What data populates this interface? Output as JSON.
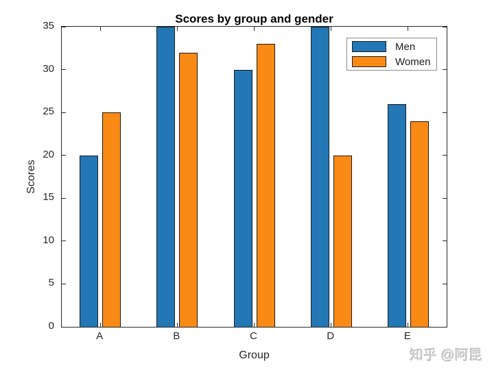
{
  "watermark": "知乎 @阿昆",
  "chart_data": {
    "type": "bar",
    "title": "Scores by group and gender",
    "xlabel": "Group",
    "ylabel": "Scores",
    "categories": [
      "A",
      "B",
      "C",
      "D",
      "E"
    ],
    "series": [
      {
        "name": "Men",
        "color": "#2277B4",
        "values": [
          20,
          35,
          30,
          35,
          26
        ]
      },
      {
        "name": "Women",
        "color": "#F98A15",
        "values": [
          25,
          32,
          33,
          20,
          24
        ]
      }
    ],
    "ylim": [
      0,
      35
    ],
    "yticks": [
      0,
      5,
      10,
      15,
      20,
      25,
      30,
      35
    ],
    "grid": false,
    "legend_position": "top-right",
    "bar_edge_color": "#1a1a1a",
    "axis_color": "#262626"
  }
}
